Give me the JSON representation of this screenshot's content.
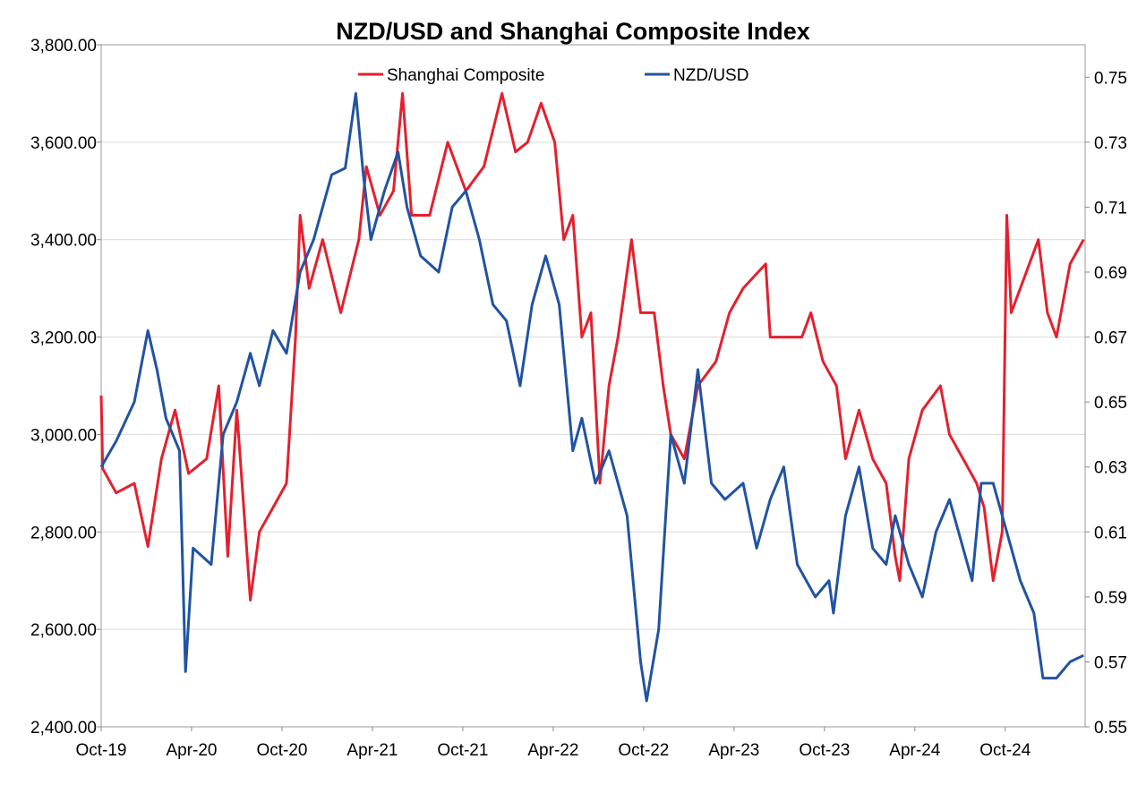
{
  "chart_data": {
    "type": "line",
    "title": "NZD/USD and Shanghai Composite Index",
    "xlabel": "",
    "ylabel": "",
    "x_unit": "months since Oct-2019",
    "xlim": [
      0,
      65.3
    ],
    "x_ticks": [
      0,
      6,
      12,
      18,
      24,
      30,
      36,
      42,
      48,
      54,
      60
    ],
    "x_tick_labels": [
      "Oct-19",
      "Apr-20",
      "Oct-20",
      "Apr-21",
      "Oct-21",
      "Apr-22",
      "Oct-22",
      "Apr-23",
      "Oct-23",
      "Apr-24",
      "Oct-24"
    ],
    "y_left": {
      "lim": [
        2400,
        3800
      ],
      "ticks": [
        2400,
        2600,
        2800,
        3000,
        3200,
        3400,
        3600,
        3800
      ],
      "tick_labels": [
        "2,400.00",
        "2,600.00",
        "2,800.00",
        "3,000.00",
        "3,200.00",
        "3,400.00",
        "3,600.00",
        "3,800.00"
      ]
    },
    "y_right": {
      "lim": [
        0.55,
        0.76
      ],
      "ticks": [
        0.55,
        0.57,
        0.59,
        0.61,
        0.63,
        0.65,
        0.67,
        0.69,
        0.71,
        0.73,
        0.75
      ],
      "tick_labels": [
        "0.55",
        "0.57",
        "0.59",
        "0.61",
        "0.63",
        "0.65",
        "0.67",
        "0.69",
        "0.71",
        "0.73",
        "0.75"
      ]
    },
    "grid": true,
    "legend_position": "top-center",
    "series": [
      {
        "name": "Shanghai Composite",
        "axis": "left",
        "color": "#e4202e",
        "x": [
          0,
          0.1,
          1.0,
          2.2,
          3.1,
          4.0,
          4.9,
          5.8,
          7.0,
          7.8,
          8.4,
          9.0,
          9.9,
          10.5,
          11.4,
          12.3,
          12.9,
          13.2,
          13.8,
          14.7,
          15.9,
          17.1,
          17.6,
          18.5,
          19.4,
          20.0,
          20.6,
          21.8,
          23.0,
          24.2,
          25.4,
          26.6,
          27.5,
          28.3,
          29.2,
          30.1,
          30.7,
          31.3,
          31.9,
          32.5,
          33.1,
          33.7,
          34.3,
          35.2,
          35.8,
          36.7,
          37.3,
          37.8,
          38.7,
          39.6,
          40.8,
          41.7,
          42.6,
          44.1,
          44.4,
          45.3,
          46.5,
          47.1,
          47.9,
          48.8,
          49.4,
          50.3,
          51.2,
          52.1,
          52.7,
          53.0,
          53.6,
          54.5,
          55.7,
          56.3,
          57.2,
          58.1,
          58.6,
          59.2,
          59.8,
          60.1,
          60.4,
          61.0,
          62.2,
          62.8,
          63.4,
          64.3,
          65.2
        ],
        "y": [
          3080,
          2930,
          2880,
          2900,
          2770,
          2950,
          3050,
          2920,
          2950,
          3100,
          2750,
          3050,
          2660,
          2800,
          2850,
          2900,
          3200,
          3450,
          3300,
          3400,
          3250,
          3400,
          3550,
          3450,
          3500,
          3700,
          3450,
          3450,
          3600,
          3500,
          3550,
          3700,
          3580,
          3600,
          3680,
          3600,
          3400,
          3450,
          3200,
          3250,
          2900,
          3100,
          3200,
          3400,
          3250,
          3250,
          3100,
          3000,
          2950,
          3100,
          3150,
          3250,
          3300,
          3350,
          3200,
          3200,
          3200,
          3250,
          3150,
          3100,
          2950,
          3050,
          2950,
          2900,
          2750,
          2700,
          2950,
          3050,
          3100,
          3000,
          2950,
          2900,
          2850,
          2700,
          2800,
          3450,
          3250,
          3300,
          3400,
          3250,
          3200,
          3350,
          3400
        ]
      },
      {
        "name": "NZD/USD",
        "axis": "right",
        "color": "#2153a3",
        "x": [
          0,
          1.0,
          2.2,
          3.1,
          3.7,
          4.3,
          5.2,
          5.6,
          6.1,
          7.3,
          8.1,
          9.0,
          9.9,
          10.5,
          11.4,
          12.3,
          13.2,
          14.1,
          15.3,
          16.2,
          16.9,
          17.4,
          17.9,
          18.8,
          19.7,
          20.3,
          21.2,
          22.4,
          23.3,
          24.2,
          25.1,
          26.0,
          26.9,
          27.8,
          28.6,
          29.5,
          30.4,
          31.3,
          31.9,
          32.8,
          33.7,
          34.9,
          35.8,
          36.2,
          37.0,
          37.8,
          38.7,
          39.6,
          40.5,
          41.4,
          42.6,
          43.5,
          44.4,
          45.3,
          46.2,
          47.4,
          48.3,
          48.6,
          49.4,
          50.3,
          51.2,
          52.1,
          52.7,
          53.6,
          54.5,
          55.4,
          56.3,
          57.2,
          57.8,
          58.4,
          59.2,
          60.1,
          61.0,
          61.9,
          62.5,
          63.4,
          64.3,
          65.2
        ],
        "y": [
          0.63,
          0.638,
          0.65,
          0.672,
          0.66,
          0.645,
          0.635,
          0.567,
          0.605,
          0.6,
          0.64,
          0.65,
          0.665,
          0.655,
          0.672,
          0.665,
          0.69,
          0.7,
          0.72,
          0.722,
          0.745,
          0.72,
          0.7,
          0.715,
          0.727,
          0.71,
          0.695,
          0.69,
          0.71,
          0.715,
          0.7,
          0.68,
          0.675,
          0.655,
          0.68,
          0.695,
          0.68,
          0.635,
          0.645,
          0.625,
          0.635,
          0.615,
          0.57,
          0.558,
          0.58,
          0.64,
          0.625,
          0.66,
          0.625,
          0.62,
          0.625,
          0.605,
          0.62,
          0.63,
          0.6,
          0.59,
          0.595,
          0.585,
          0.615,
          0.63,
          0.605,
          0.6,
          0.615,
          0.6,
          0.59,
          0.61,
          0.62,
          0.605,
          0.595,
          0.625,
          0.625,
          0.61,
          0.595,
          0.585,
          0.565,
          0.565,
          0.57,
          0.572
        ]
      }
    ]
  }
}
